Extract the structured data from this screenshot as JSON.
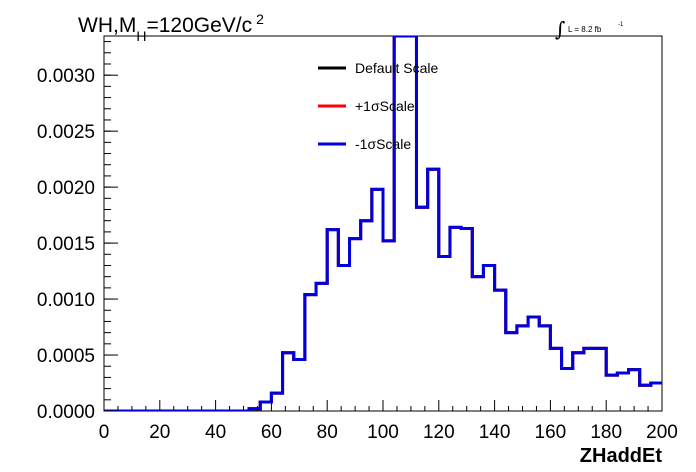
{
  "chart_data": {
    "type": "line",
    "title": {
      "prefix": "WH,M",
      "subscript": "H",
      "suffix": "=120GeV/c",
      "superscript": "2"
    },
    "lumi_annotation": {
      "integral_sign": "∫",
      "text": "L = 8.2 fb",
      "superscript": "-1"
    },
    "xlabel": "ZHaddEt",
    "ylabel": "",
    "xlim": [
      0,
      200
    ],
    "ylim": [
      0,
      0.00335
    ],
    "x_ticks": [
      0,
      20,
      40,
      60,
      80,
      100,
      120,
      140,
      160,
      180,
      200
    ],
    "y_ticks": [
      0.0,
      0.0005,
      0.001,
      0.0015,
      0.002,
      0.0025,
      0.003
    ],
    "y_tick_labels": [
      "0.0000",
      "0.0005",
      "0.0010",
      "0.0015",
      "0.0020",
      "0.0025",
      "0.0030"
    ],
    "legend_position": "top-center",
    "grid": false,
    "bin_edges": [
      0,
      4,
      8,
      12,
      16,
      20,
      24,
      28,
      32,
      36,
      40,
      44,
      48,
      52,
      56,
      60,
      64,
      68,
      72,
      76,
      80,
      84,
      88,
      92,
      96,
      100,
      104,
      108,
      112,
      116,
      120,
      124,
      128,
      132,
      136,
      140,
      144,
      148,
      152,
      156,
      160,
      164,
      168,
      172,
      176,
      180,
      184,
      188,
      192,
      196,
      200
    ],
    "series": [
      {
        "name": "Default Scale",
        "color": "#000000",
        "values": [
          0,
          0,
          0,
          0,
          0,
          0,
          0,
          0,
          0,
          0,
          0,
          0,
          0,
          2e-05,
          8e-05,
          0.00016,
          0.00052,
          0.00046,
          0.00104,
          0.00114,
          0.00162,
          0.0013,
          0.00154,
          0.0017,
          0.00198,
          0.00152,
          0.00335,
          0.00335,
          0.00182,
          0.00216,
          0.00138,
          0.00164,
          0.00163,
          0.0012,
          0.0013,
          0.00108,
          0.0007,
          0.00076,
          0.00084,
          0.00076,
          0.00056,
          0.00038,
          0.00052,
          0.00056,
          0.00056,
          0.00032,
          0.00034,
          0.00037,
          0.00023,
          0.00025
        ]
      },
      {
        "name": "+1σScale",
        "color": "#ff0000",
        "values": [
          0,
          0,
          0,
          0,
          0,
          0,
          0,
          0,
          0,
          0,
          0,
          0,
          0,
          2e-05,
          8e-05,
          0.00016,
          0.00052,
          0.00046,
          0.00104,
          0.00114,
          0.00162,
          0.0013,
          0.00154,
          0.0017,
          0.00198,
          0.00152,
          0.00335,
          0.00335,
          0.00182,
          0.00216,
          0.00138,
          0.00164,
          0.00163,
          0.0012,
          0.0013,
          0.00108,
          0.0007,
          0.00076,
          0.00084,
          0.00076,
          0.00056,
          0.00038,
          0.00052,
          0.00056,
          0.00056,
          0.00032,
          0.00034,
          0.00037,
          0.00023,
          0.00025
        ]
      },
      {
        "name": "-1σScale",
        "color": "#0000dd",
        "values": [
          0,
          0,
          0,
          0,
          0,
          0,
          0,
          0,
          0,
          0,
          0,
          0,
          0,
          2e-05,
          8e-05,
          0.00016,
          0.00052,
          0.00046,
          0.00104,
          0.00114,
          0.00162,
          0.0013,
          0.00154,
          0.0017,
          0.00198,
          0.00152,
          0.00335,
          0.00335,
          0.00182,
          0.00216,
          0.00138,
          0.00164,
          0.00163,
          0.0012,
          0.0013,
          0.00108,
          0.0007,
          0.00076,
          0.00084,
          0.00076,
          0.00056,
          0.00038,
          0.00052,
          0.00056,
          0.00056,
          0.00032,
          0.00034,
          0.00037,
          0.00023,
          0.00025
        ]
      }
    ]
  }
}
